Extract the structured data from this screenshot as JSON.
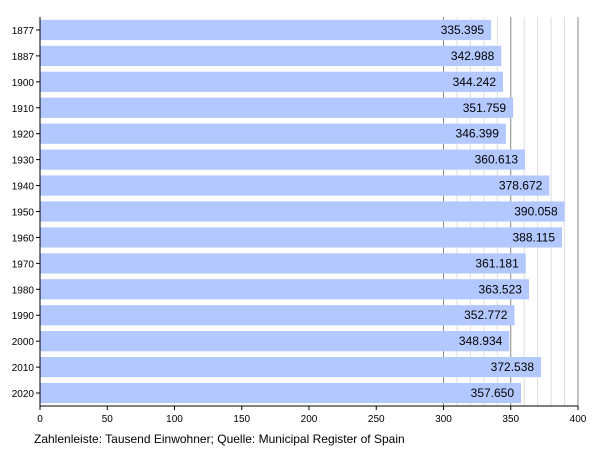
{
  "chart_data": {
    "type": "bar",
    "orientation": "horizontal",
    "categories": [
      "1877",
      "1887",
      "1900",
      "1910",
      "1920",
      "1930",
      "1940",
      "1950",
      "1960",
      "1970",
      "1980",
      "1990",
      "2000",
      "2010",
      "2020"
    ],
    "values": [
      335.395,
      342.988,
      344.242,
      351.759,
      346.399,
      360.613,
      378.672,
      390.058,
      388.115,
      361.181,
      363.523,
      352.772,
      348.934,
      372.538,
      357.65
    ],
    "value_labels": [
      "335.395",
      "342.988",
      "344.242",
      "351.759",
      "346.399",
      "360.613",
      "378.672",
      "390.058",
      "388.115",
      "361.181",
      "363.523",
      "352.772",
      "348.934",
      "372.538",
      "357.650"
    ],
    "xlim": [
      0,
      400
    ],
    "x_ticks": [
      0,
      50,
      100,
      150,
      200,
      250,
      300,
      350,
      400
    ],
    "grid": "vertical, minor gridlines from 300 to 400",
    "legend": "none",
    "bar_color": "#b3c8ff",
    "caption": "Zahlenleiste: Tausend Einwohner; Quelle: Municipal Register of Spain"
  }
}
